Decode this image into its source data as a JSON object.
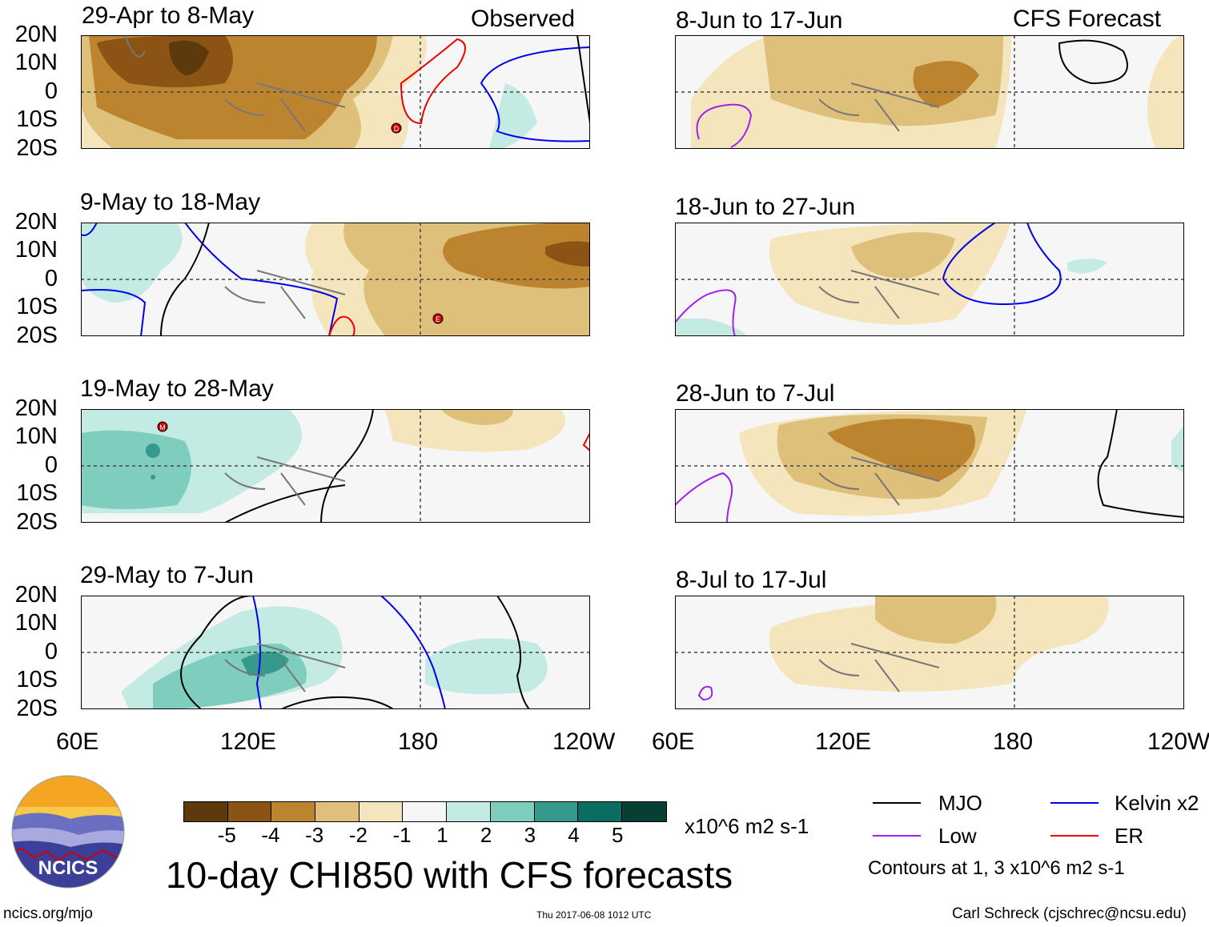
{
  "figure": {
    "title": "10-day CHI850 with CFS forecasts",
    "site": "ncics.org/mjo",
    "timestamp": "Thu 2017-06-08 1012 UTC",
    "author": "Carl Schreck (cjschrec@ncsu.edu)"
  },
  "columns": {
    "left_label": "Observed",
    "right_label": "CFS Forecast"
  },
  "axes": {
    "lat_labels": [
      "20N",
      "10N",
      "0",
      "10S",
      "20S"
    ],
    "lon_labels": [
      "60E",
      "120E",
      "180",
      "120W"
    ]
  },
  "panels": {
    "observed": [
      {
        "title": "29-Apr to 8-May",
        "storm": "D"
      },
      {
        "title": "9-May to 18-May",
        "storm": "E"
      },
      {
        "title": "19-May to 28-May",
        "storm": "M"
      },
      {
        "title": "29-May to 7-Jun",
        "storm": ""
      }
    ],
    "forecast": [
      {
        "title": "8-Jun to 17-Jun"
      },
      {
        "title": "18-Jun to 27-Jun"
      },
      {
        "title": "28-Jun to 7-Jul"
      },
      {
        "title": "8-Jul to 17-Jul"
      }
    ]
  },
  "colorbar": {
    "units": "x10^6 m2 s-1",
    "tick_labels": [
      "-5",
      "-4",
      "-3",
      "-2",
      "-1",
      "1",
      "2",
      "3",
      "4",
      "5"
    ],
    "colors": [
      "#5c3a0e",
      "#8c5414",
      "#bd8430",
      "#dfc07a",
      "#f5e5bd",
      "#f6f6f6",
      "#c4ebe3",
      "#7fcdbf",
      "#36998d",
      "#0a6d5f",
      "#073f35"
    ]
  },
  "legend": {
    "items": [
      {
        "label": "MJO",
        "color": "#000000"
      },
      {
        "label": "Kelvin x2",
        "color": "#0000ee"
      },
      {
        "label": "Low",
        "color": "#a020f0"
      },
      {
        "label": "ER",
        "color": "#ee0000"
      }
    ],
    "note": "Contours at 1, 3 x10^6 m2 s-1"
  },
  "logo": {
    "text": "NCICS"
  }
}
